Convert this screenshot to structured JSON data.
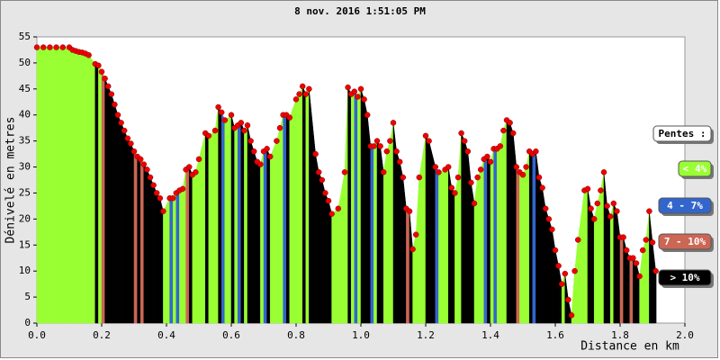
{
  "chart_data": {
    "type": "area",
    "title": "8 nov. 2016 1:51:05 PM",
    "x_label": "Distance en km",
    "y_label": "Dénivelé en metres",
    "xlim": [
      0,
      2
    ],
    "ylim": [
      0,
      55
    ],
    "xticks": [
      {
        "value": 0,
        "label": "0.0"
      },
      0.2,
      0.4,
      0.6,
      0.8,
      {
        "value": 1,
        "label": "1.0"
      },
      1.2,
      1.4,
      1.6,
      1.8,
      {
        "value": 2,
        "label": "2.0"
      }
    ],
    "yticks": [
      0,
      5,
      10,
      15,
      20,
      25,
      30,
      35,
      40,
      45,
      50,
      55
    ],
    "point_color": "#ee0000",
    "legend": {
      "title": "Pentes :",
      "items": [
        {
          "name": "< 4%",
          "color": "#99ff33"
        },
        {
          "name": "4 - 7%",
          "color": "#3366cc"
        },
        {
          "name": "7 - 10%",
          "color": "#cc6655"
        },
        {
          "name": "> 10%",
          "color": "#000000"
        }
      ]
    },
    "x": [
      0,
      0.02,
      0.04,
      0.06,
      0.08,
      0.1,
      0.11,
      0.12,
      0.13,
      0.14,
      0.15,
      0.16,
      0.18,
      0.19,
      0.2,
      0.21,
      0.22,
      0.23,
      0.24,
      0.25,
      0.26,
      0.27,
      0.28,
      0.29,
      0.3,
      0.31,
      0.32,
      0.33,
      0.34,
      0.35,
      0.36,
      0.37,
      0.38,
      0.39,
      0.41,
      0.42,
      0.43,
      0.44,
      0.45,
      0.46,
      0.47,
      0.48,
      0.49,
      0.5,
      0.52,
      0.53,
      0.55,
      0.56,
      0.57,
      0.58,
      0.6,
      0.61,
      0.62,
      0.63,
      0.64,
      0.65,
      0.66,
      0.67,
      0.68,
      0.69,
      0.7,
      0.71,
      0.72,
      0.74,
      0.75,
      0.76,
      0.77,
      0.78,
      0.8,
      0.81,
      0.82,
      0.83,
      0.84,
      0.86,
      0.87,
      0.88,
      0.89,
      0.9,
      0.91,
      0.93,
      0.95,
      0.96,
      0.97,
      0.98,
      0.99,
      1.0,
      1.01,
      1.02,
      1.03,
      1.04,
      1.05,
      1.06,
      1.07,
      1.08,
      1.09,
      1.1,
      1.11,
      1.12,
      1.13,
      1.14,
      1.15,
      1.16,
      1.17,
      1.18,
      1.2,
      1.21,
      1.23,
      1.24,
      1.26,
      1.27,
      1.28,
      1.29,
      1.3,
      1.31,
      1.32,
      1.33,
      1.34,
      1.35,
      1.36,
      1.37,
      1.38,
      1.39,
      1.4,
      1.41,
      1.42,
      1.43,
      1.44,
      1.45,
      1.46,
      1.47,
      1.48,
      1.49,
      1.5,
      1.51,
      1.52,
      1.53,
      1.54,
      1.55,
      1.56,
      1.57,
      1.58,
      1.59,
      1.6,
      1.61,
      1.62,
      1.63,
      1.64,
      1.65,
      1.66,
      1.67,
      1.69,
      1.7,
      1.71,
      1.72,
      1.73,
      1.74,
      1.75,
      1.76,
      1.77,
      1.78,
      1.79,
      1.8,
      1.81,
      1.82,
      1.83,
      1.84,
      1.85,
      1.86,
      1.87,
      1.88,
      1.89,
      1.9,
      1.91
    ],
    "values": [
      53,
      53,
      53,
      53,
      53,
      53,
      52.5,
      52.3,
      52.1,
      52,
      51.8,
      51.5,
      49.8,
      49.5,
      48.3,
      47,
      45.5,
      44,
      42,
      40,
      38.5,
      37,
      35.5,
      34.5,
      33,
      32,
      31.5,
      30.5,
      29.5,
      28,
      26.5,
      25,
      24,
      21.5,
      24,
      24,
      25,
      25.5,
      25.8,
      29.5,
      30,
      28.5,
      29,
      31.5,
      36.5,
      36,
      37,
      41.5,
      40.5,
      39,
      40,
      37.5,
      38,
      38.5,
      37,
      38,
      35,
      33,
      31,
      30.5,
      33,
      33.5,
      32,
      35,
      37.5,
      40,
      40,
      39.5,
      43,
      44,
      45.5,
      44,
      45,
      32.5,
      29,
      27.5,
      25,
      23.5,
      21,
      22,
      29,
      45.3,
      44,
      44.5,
      43.5,
      45,
      43,
      40,
      34,
      34,
      35,
      34,
      29,
      33,
      35,
      38.5,
      33,
      31,
      28,
      22,
      21.5,
      14.2,
      17,
      28,
      36,
      35,
      30,
      29,
      29.5,
      30,
      26,
      25,
      28,
      36.5,
      35,
      33,
      27,
      23,
      28,
      29.5,
      31.5,
      32,
      31,
      33.5,
      33.5,
      34,
      37,
      39,
      38.5,
      36.5,
      30,
      29,
      28.5,
      30,
      33,
      32.5,
      33,
      28,
      26,
      22,
      20,
      18,
      14,
      11,
      7.5,
      9.5,
      4.5,
      1.5,
      10,
      16,
      25.5,
      25.8,
      22,
      20,
      23,
      25.5,
      29,
      22.5,
      20.5,
      23,
      21.5,
      16.5,
      16.5,
      14,
      12.5,
      12.5,
      11.5,
      9,
      14,
      16,
      21.5,
      15.5,
      10
    ],
    "colors": [
      "#99ff33",
      "#99ff33",
      "#99ff33",
      "#99ff33",
      "#99ff33",
      "#99ff33",
      "#99ff33",
      "#99ff33",
      "#99ff33",
      "#99ff33",
      "#99ff33",
      "#99ff33",
      "#000000",
      "#99ff33",
      "#cc6655",
      "#000000",
      "#000000",
      "#000000",
      "#000000",
      "#000000",
      "#000000",
      "#000000",
      "#000000",
      "#000000",
      "#cc6655",
      "#000000",
      "#cc6655",
      "#000000",
      "#000000",
      "#000000",
      "#000000",
      "#000000",
      "#000000",
      "#99ff33",
      "#3366cc",
      "#99ff33",
      "#3366cc",
      "#99ff33",
      "#99ff33",
      "#cc6655",
      "#000000",
      "#99ff33",
      "#99ff33",
      "#99ff33",
      "#000000",
      "#99ff33",
      "#99ff33",
      "#000000",
      "#3366cc",
      "#99ff33",
      "#000000",
      "#99ff33",
      "#3366cc",
      "#000000",
      "#99ff33",
      "#000000",
      "#000000",
      "#000000",
      "#000000",
      "#99ff33",
      "#3366cc",
      "#000000",
      "#99ff33",
      "#99ff33",
      "#99ff33",
      "#3366cc",
      "#000000",
      "#99ff33",
      "#99ff33",
      "#99ff33",
      "#000000",
      "#99ff33",
      "#000000",
      "#000000",
      "#000000",
      "#000000",
      "#000000",
      "#000000",
      "#99ff33",
      "#99ff33",
      "#99ff33",
      "#000000",
      "#99ff33",
      "#3366cc",
      "#99ff33",
      "#000000",
      "#000000",
      "#000000",
      "#3366cc",
      "#99ff33",
      "#000000",
      "#000000",
      "#99ff33",
      "#99ff33",
      "#99ff33",
      "#000000",
      "#000000",
      "#000000",
      "#000000",
      "#cc6655",
      "#000000",
      "#99ff33",
      "#99ff33",
      "#99ff33",
      "#000000",
      "#000000",
      "#3366cc",
      "#99ff33",
      "#99ff33",
      "#000000",
      "#000000",
      "#99ff33",
      "#99ff33",
      "#000000",
      "#000000",
      "#000000",
      "#000000",
      "#99ff33",
      "#99ff33",
      "#99ff33",
      "#3366cc",
      "#000000",
      "#99ff33",
      "#3366cc",
      "#99ff33",
      "#99ff33",
      "#99ff33",
      "#000000",
      "#000000",
      "#000000",
      "#cc6655",
      "#99ff33",
      "#99ff33",
      "#99ff33",
      "#000000",
      "#3366cc",
      "#000000",
      "#000000",
      "#000000",
      "#000000",
      "#000000",
      "#000000",
      "#000000",
      "#000000",
      "#99ff33",
      "#000000",
      "#000000",
      "#99ff33",
      "#99ff33",
      "#99ff33",
      "#99ff33",
      "#000000",
      "#000000",
      "#99ff33",
      "#99ff33",
      "#99ff33",
      "#000000",
      "#000000",
      "#99ff33",
      "#000000",
      "#000000",
      "#cc6655",
      "#000000",
      "#000000",
      "#cc6655",
      "#000000",
      "#000000",
      "#99ff33",
      "#99ff33",
      "#99ff33",
      "#000000",
      "#000000",
      "#000000"
    ]
  }
}
